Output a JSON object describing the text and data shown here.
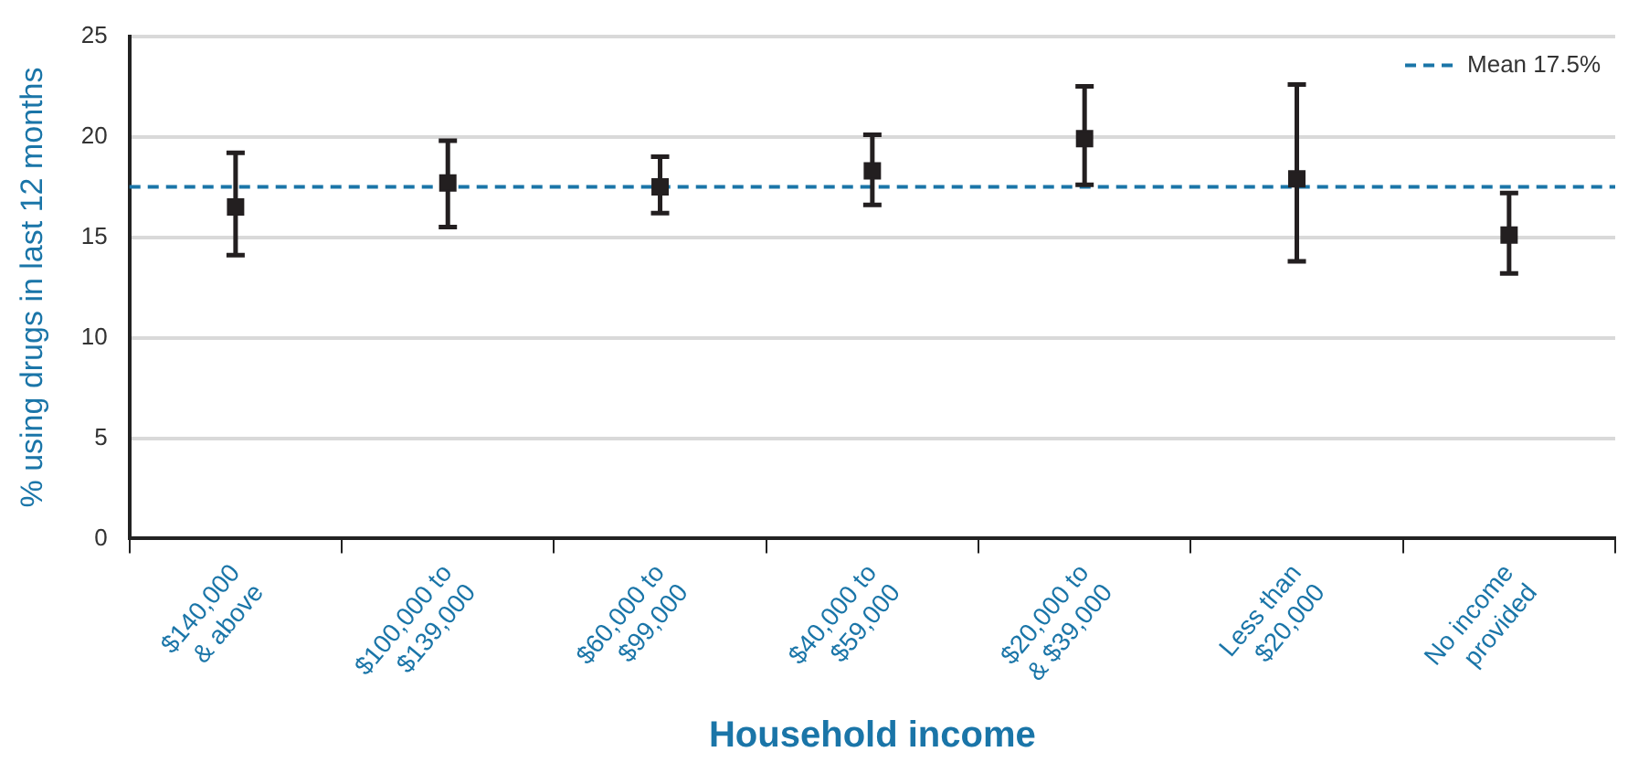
{
  "chart_data": {
    "type": "scatter",
    "xlabel": "Household income",
    "ylabel": "% using drugs in last 12 months",
    "categories": [
      "$140,000 & above",
      "$100,000 to $139,000",
      "$60,000 to $99,000",
      "$40,000 to $59,000",
      "$20,000 to & $39,000",
      "Less than $20,000",
      "No income provided"
    ],
    "values": [
      16.5,
      17.7,
      17.5,
      18.3,
      19.9,
      17.9,
      15.1
    ],
    "errors": [
      [
        14.1,
        19.2
      ],
      [
        15.5,
        19.8
      ],
      [
        16.2,
        19.0
      ],
      [
        16.6,
        20.1
      ],
      [
        17.6,
        22.5
      ],
      [
        13.8,
        22.6
      ],
      [
        13.2,
        17.2
      ]
    ],
    "color": "#231f20",
    "marker": "square",
    "ylim": [
      0,
      25
    ],
    "yticks": [
      0,
      5,
      10,
      15,
      20,
      25
    ],
    "grid": "y",
    "legend": "top right",
    "ref_lines": [
      {
        "axis": "y",
        "value": 17.5,
        "label": "Mean 17.5%",
        "color": "#1a75a8",
        "line_style": "dashed"
      }
    ]
  }
}
